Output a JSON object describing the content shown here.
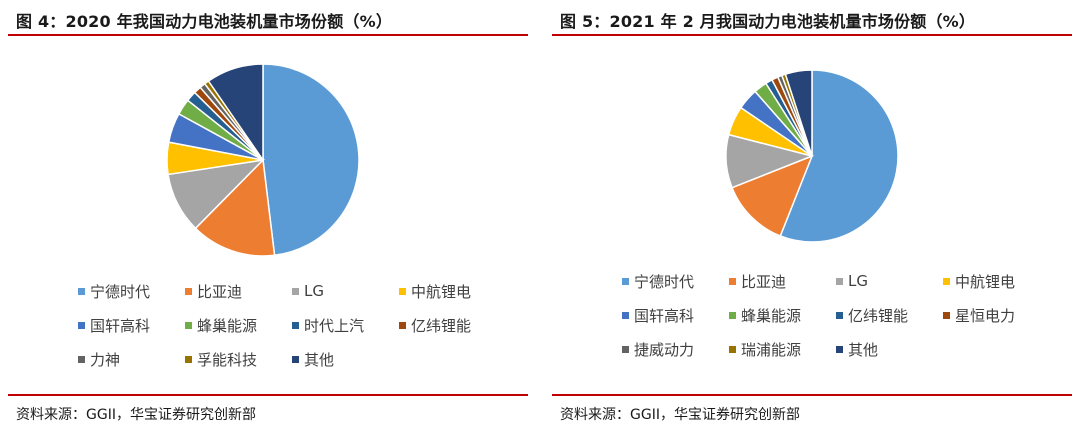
{
  "charts": [
    {
      "figure_title": "图 4：2020 年我国动力电池装机量市场份额（%）",
      "source": "资料来源：GGII，华宝证券研究创新部"
    },
    {
      "figure_title": "图 5：2021 年 2 月我国动力电池装机量市场份额（%）",
      "source": "资料来源：GGII，华宝证券研究创新部"
    }
  ],
  "chart_data": [
    {
      "type": "pie",
      "title": "图 4：2020 年我国动力电池装机量市场份额（%）",
      "legend_position": "bottom",
      "series": [
        {
          "name": "宁德时代",
          "value": 50.0,
          "color": "#5b9bd5"
        },
        {
          "name": "比亚迪",
          "value": 14.9,
          "color": "#ed7d31"
        },
        {
          "name": "LG",
          "value": 10.6,
          "color": "#a5a5a5"
        },
        {
          "name": "中航锂电",
          "value": 5.6,
          "color": "#ffc000"
        },
        {
          "name": "国轩高科",
          "value": 5.2,
          "color": "#4472c4"
        },
        {
          "name": "蜂巢能源",
          "value": 2.8,
          "color": "#70ad47"
        },
        {
          "name": "时代上汽",
          "value": 1.8,
          "color": "#255e91"
        },
        {
          "name": "亿纬锂能",
          "value": 1.3,
          "color": "#9e480e"
        },
        {
          "name": "力神",
          "value": 1.0,
          "color": "#636363"
        },
        {
          "name": "孚能科技",
          "value": 0.8,
          "color": "#997300"
        },
        {
          "name": "其他",
          "value": 10.0,
          "color": "#264478"
        }
      ]
    },
    {
      "type": "pie",
      "title": "图 5：2021 年 2 月我国动力电池装机量市场份额（%）",
      "legend_position": "bottom",
      "series": [
        {
          "name": "宁德时代",
          "value": 56.0,
          "color": "#5b9bd5"
        },
        {
          "name": "比亚迪",
          "value": 13.0,
          "color": "#ed7d31"
        },
        {
          "name": "LG",
          "value": 10.0,
          "color": "#a5a5a5"
        },
        {
          "name": "中航锂电",
          "value": 5.5,
          "color": "#ffc000"
        },
        {
          "name": "国轩高科",
          "value": 4.0,
          "color": "#4472c4"
        },
        {
          "name": "蜂巢能源",
          "value": 2.5,
          "color": "#70ad47"
        },
        {
          "name": "亿纬锂能",
          "value": 1.3,
          "color": "#255e91"
        },
        {
          "name": "星恒电力",
          "value": 1.2,
          "color": "#9e480e"
        },
        {
          "name": "捷威动力",
          "value": 0.8,
          "color": "#636363"
        },
        {
          "name": "瑞浦能源",
          "value": 0.7,
          "color": "#997300"
        },
        {
          "name": "其他",
          "value": 5.0,
          "color": "#264478"
        }
      ]
    }
  ]
}
